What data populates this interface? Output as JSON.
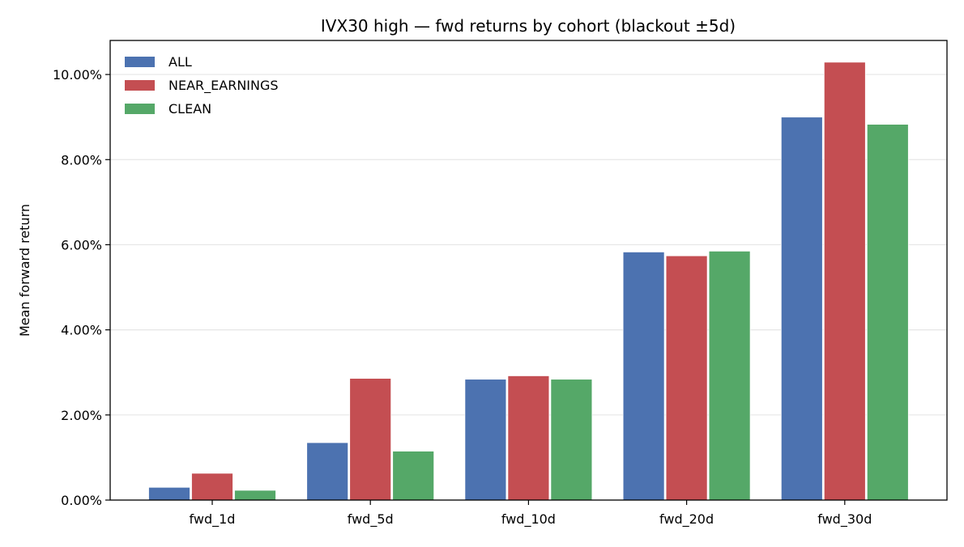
{
  "chart_data": {
    "type": "bar",
    "title": "IVX30 high — fwd returns by cohort (blackout ±5d)",
    "xlabel": "",
    "ylabel": "Mean forward return",
    "categories": [
      "fwd_1d",
      "fwd_5d",
      "fwd_10d",
      "fwd_20d",
      "fwd_30d"
    ],
    "series": [
      {
        "name": "ALL",
        "color": "#4c72b0",
        "values": [
          0.3,
          1.35,
          2.84,
          5.83,
          9.0
        ]
      },
      {
        "name": "NEAR_EARNINGS",
        "color": "#c44e52",
        "values": [
          0.63,
          2.86,
          2.92,
          5.74,
          10.29
        ]
      },
      {
        "name": "CLEAN",
        "color": "#55a868",
        "values": [
          0.23,
          1.15,
          2.84,
          5.85,
          8.83
        ]
      }
    ],
    "ylim": [
      0,
      10.8
    ],
    "yticks": [
      0,
      2,
      4,
      6,
      8,
      10
    ],
    "ytick_labels": [
      "0.00%",
      "2.00%",
      "4.00%",
      "6.00%",
      "8.00%",
      "10.00%"
    ],
    "grid": "horizontal",
    "legend_position": "upper-left"
  }
}
